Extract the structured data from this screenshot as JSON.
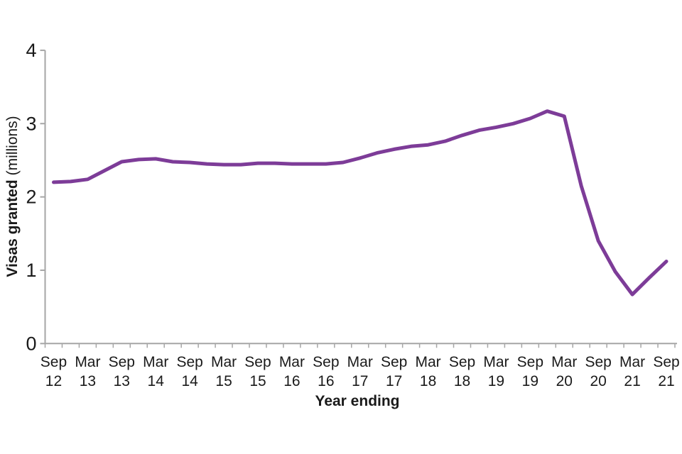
{
  "chart_data": {
    "type": "line",
    "title": "",
    "xlabel": "Year ending",
    "ylabel": "Visas granted (millions)",
    "ylabel_bold": "Visas granted",
    "ylabel_unit": "(millions)",
    "ylim": [
      0,
      4
    ],
    "yticks": [
      0,
      1,
      2,
      3,
      4
    ],
    "grid": false,
    "legend": "none",
    "x": [
      "Sep 12",
      "Dec 12",
      "Mar 13",
      "Jun 13",
      "Sep 13",
      "Dec 13",
      "Mar 14",
      "Jun 14",
      "Sep 14",
      "Dec 14",
      "Mar 15",
      "Jun 15",
      "Sep 15",
      "Dec 15",
      "Mar 16",
      "Jun 16",
      "Sep 16",
      "Dec 16",
      "Mar 17",
      "Jun 17",
      "Sep 17",
      "Dec 17",
      "Mar 18",
      "Jun 18",
      "Sep 18",
      "Dec 18",
      "Mar 19",
      "Jun 19",
      "Sep 19",
      "Dec 19",
      "Mar 20",
      "Jun 20",
      "Sep 20",
      "Dec 20",
      "Mar 21",
      "Jun 21",
      "Sep 21"
    ],
    "x_labeled_every": 2,
    "series": [
      {
        "name": "Visas granted",
        "color": "#7d3c98",
        "values": [
          2.2,
          2.21,
          2.24,
          2.36,
          2.48,
          2.51,
          2.52,
          2.48,
          2.47,
          2.45,
          2.44,
          2.44,
          2.46,
          2.46,
          2.45,
          2.45,
          2.45,
          2.47,
          2.53,
          2.6,
          2.65,
          2.69,
          2.71,
          2.76,
          2.84,
          2.91,
          2.95,
          3.0,
          3.07,
          3.17,
          3.1,
          2.15,
          1.4,
          0.98,
          0.67,
          0.9,
          1.12
        ]
      }
    ],
    "colors": {
      "line": "#7d3c98",
      "axis": "#a6a6a6",
      "text": "#1a1a1a"
    }
  }
}
